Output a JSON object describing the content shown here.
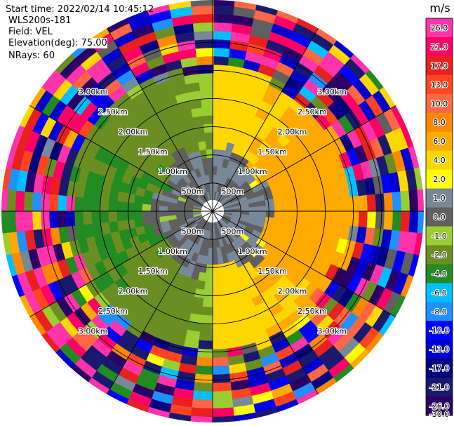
{
  "header": {
    "start_time": "Start time: 2022/02/14 10:45:12",
    "instrument": "WLS200s-181",
    "field": "Field: VEL",
    "elevation": "Elevation(deg): 75.00",
    "nrays": "NRays: 60"
  },
  "chart_data": {
    "type": "heatmap",
    "projection": "polar-ppi",
    "field": "VEL",
    "units": "m/s",
    "nrays": 60,
    "elevation_deg": 75.0,
    "max_range_km": 3.75,
    "range_ring_labels": [
      "500m",
      "1.00km",
      "1.50km",
      "2.00km",
      "2.50km",
      "3.00km"
    ],
    "range_rings_km": [
      0.5,
      1.0,
      1.5,
      2.0,
      2.5,
      3.0
    ],
    "spokes_deg": [
      0,
      30,
      60,
      90,
      120,
      150,
      180,
      210,
      240,
      270,
      300,
      330
    ],
    "colorbar": {
      "title": "m/s",
      "tick_labels": [
        "26.0",
        "21.0",
        "17.0",
        "13.0",
        "10.0",
        "8.0",
        "6.0",
        "4.0",
        "2.0",
        "1.0",
        "0.0",
        "-1.0",
        "-2.0",
        "-4.0",
        "-6.0",
        "-8.0",
        "-10.0",
        "-13.0",
        "-17.0",
        "-21.0",
        "-26.0",
        "-30.0"
      ],
      "colors": [
        "#ff33aa",
        "#ff0066",
        "#e82020",
        "#ff4422",
        "#ff6644",
        "#ff8800",
        "#ffaa00",
        "#ffd700",
        "#ffff00",
        "#778899",
        "#606060",
        "#9acd32",
        "#6b8e23",
        "#228b22",
        "#00bfff",
        "#1e90ff",
        "#0000ff",
        "#0000cd",
        "#000080",
        "#191970",
        "#2a0066"
      ]
    },
    "structure": [
      {
        "azimuth_deg": [
          0,
          180
        ],
        "range_km": [
          0.2,
          2.3
        ],
        "dominant_velocity_ms": 4.0,
        "note": "positive velocities, yellow"
      },
      {
        "azimuth_deg": [
          180,
          360
        ],
        "range_km": [
          0.2,
          2.3
        ],
        "dominant_velocity_ms": -3.0,
        "note": "negative velocities, olive/green"
      },
      {
        "azimuth_deg": [
          0,
          360
        ],
        "range_km": [
          0.2,
          1.1
        ],
        "dominant_velocity_ms": 0.0,
        "note": "near-zero velocities, gray"
      },
      {
        "azimuth_deg": [
          0,
          360
        ],
        "range_km": [
          2.3,
          3.75
        ],
        "dominant_velocity_ms": null,
        "note": "noisy multicolor outer ring"
      }
    ]
  }
}
